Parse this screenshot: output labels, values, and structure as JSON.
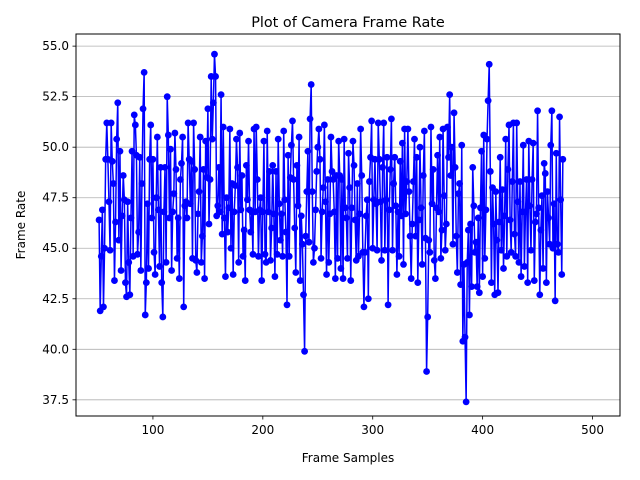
{
  "chart_data": {
    "type": "line",
    "title": "Plot of Camera Frame Rate",
    "xlabel": "Frame Samples",
    "ylabel": "Frame Rate",
    "xlim": [
      30,
      525
    ],
    "ylim": [
      36.7,
      55.6
    ],
    "xticks": [
      100,
      200,
      300,
      400,
      500
    ],
    "yticks": [
      37.5,
      40.0,
      42.5,
      45.0,
      47.5,
      50.0,
      52.5,
      55.0
    ],
    "ytick_labels": [
      "37.5",
      "40.0",
      "42.5",
      "45.0",
      "47.5",
      "50.0",
      "52.5",
      "55.0"
    ],
    "grid": "horizontal",
    "color": "#0000ff",
    "marker": "circle",
    "x_start": 51,
    "x_step": 1,
    "values": [
      46.4,
      41.9,
      44.6,
      46.9,
      42.1,
      45.0,
      49.4,
      51.2,
      49.4,
      47.3,
      44.9,
      51.2,
      49.3,
      48.2,
      43.4,
      46.3,
      50.4,
      52.2,
      45.4,
      49.8,
      43.9,
      46.6,
      48.6,
      47.4,
      43.3,
      42.6,
      47.3,
      44.3,
      42.7,
      46.5,
      49.8,
      44.6,
      51.6,
      51.1,
      49.6,
      44.7,
      45.8,
      49.5,
      43.9,
      48.2,
      51.9,
      53.7,
      41.7,
      43.3,
      47.2,
      44.0,
      49.4,
      51.1,
      46.5,
      49.4,
      44.8,
      43.7,
      47.5,
      50.5,
      46.9,
      44.1,
      49.0,
      43.3,
      41.6,
      46.8,
      49.0,
      44.3,
      52.5,
      50.6,
      46.5,
      49.9,
      43.9,
      46.8,
      47.7,
      50.7,
      48.9,
      44.5,
      46.5,
      43.5,
      48.4,
      49.2,
      50.5,
      42.1,
      47.1,
      47.3,
      46.5,
      51.2,
      49.4,
      47.2,
      49.3,
      44.5,
      51.2,
      48.9,
      44.4,
      43.8,
      46.7,
      47.8,
      50.5,
      44.3,
      45.6,
      48.9,
      43.5,
      50.3,
      48.5,
      51.9,
      46.2,
      48.4,
      53.5,
      50.4,
      52.2,
      54.6,
      53.5,
      46.6,
      47.1,
      49.0,
      46.8,
      52.6,
      45.7,
      51.0,
      46.5,
      43.6,
      47.5,
      45.8,
      47.0,
      50.9,
      45.0,
      48.2,
      43.7,
      46.8,
      48.1,
      50.4,
      49.0,
      44.3,
      50.7,
      46.9,
      48.6,
      44.6,
      45.9,
      43.4,
      49.1,
      47.4,
      50.3,
      46.9,
      45.8,
      46.8,
      44.7,
      50.9,
      46.8,
      51.0,
      48.4,
      44.6,
      46.9,
      47.5,
      43.4,
      46.8,
      50.3,
      44.7,
      44.3,
      50.8,
      46.8,
      48.8,
      44.4,
      46.0,
      49.1,
      46.7,
      43.6,
      48.8,
      44.7,
      50.4,
      47.2,
      45.4,
      46.7,
      44.6,
      50.8,
      47.4,
      45.8,
      42.2,
      49.6,
      44.6,
      48.5,
      50.1,
      51.3,
      48.4,
      46.0,
      43.8,
      49.1,
      47.1,
      50.5,
      43.4,
      46.6,
      45.2,
      42.7,
      39.9,
      45.6,
      47.8,
      49.8,
      45.3,
      51.4,
      53.1,
      47.8,
      44.3,
      45.0,
      46.9,
      48.8,
      50.0,
      50.9,
      49.4,
      44.5,
      46.8,
      48.0,
      51.1,
      47.3,
      43.7,
      48.4,
      44.3,
      46.7,
      50.5,
      48.8,
      48.4,
      46.8,
      43.5,
      48.6,
      44.5,
      50.3,
      48.6,
      44.0,
      48.4,
      43.5,
      50.4,
      47.0,
      46.5,
      44.5,
      49.7,
      48.0,
      43.4,
      47.0,
      50.3,
      49.1,
      46.4,
      44.4,
      48.2,
      44.6,
      46.7,
      50.9,
      48.6,
      44.8,
      42.1,
      44.8,
      46.6,
      47.4,
      42.5,
      48.3,
      49.5,
      51.3,
      45.0,
      47.4,
      49.4,
      47.2,
      44.9,
      51.2,
      49.4,
      47.3,
      44.4,
      49.0,
      51.2,
      44.9,
      47.4,
      49.5,
      42.2,
      46.9,
      48.9,
      51.4,
      44.9,
      48.2,
      49.5,
      47.1,
      43.7,
      46.8,
      44.6,
      49.3,
      46.6,
      50.2,
      44.2,
      50.9,
      46.7,
      48.3,
      50.9,
      47.8,
      45.6,
      43.5,
      46.2,
      48.3,
      50.4,
      45.6,
      49.5,
      43.3,
      46.4,
      50.0,
      47.0,
      44.2,
      48.6,
      50.8,
      45.5,
      38.9,
      41.6,
      45.4,
      44.8,
      51.0,
      47.2,
      48.9,
      44.4,
      43.5,
      47.0,
      49.6,
      46.8,
      50.5,
      44.5,
      45.9,
      50.9,
      47.6,
      44.9,
      46.2,
      51.0,
      49.5,
      52.6,
      48.6,
      50.0,
      45.2,
      51.7,
      49.0,
      45.6,
      43.8,
      47.7,
      48.2,
      43.2,
      50.1,
      40.4,
      44.2,
      40.6,
      37.4,
      44.3,
      45.9,
      41.7,
      46.2,
      43.1,
      49.0,
      47.1,
      44.8,
      45.3,
      43.1,
      46.5,
      42.8,
      47.0,
      49.8,
      43.6,
      50.6,
      44.5,
      46.9,
      50.4,
      52.3,
      54.1,
      48.8,
      43.3,
      48.0,
      46.2,
      42.7,
      47.8,
      45.4,
      42.8,
      46.3,
      49.5,
      44.9,
      47.9,
      44.0,
      46.6,
      50.4,
      44.6,
      48.9,
      51.1,
      46.4,
      44.8,
      48.3,
      51.2,
      45.7,
      44.6,
      51.2,
      47.3,
      44.3,
      48.3,
      43.6,
      46.8,
      50.1,
      44.1,
      46.8,
      48.4,
      43.3,
      50.3,
      47.1,
      44.9,
      48.4,
      50.2,
      43.4,
      46.3,
      46.7,
      51.8,
      47.0,
      42.7,
      45.9,
      47.6,
      44.0,
      49.2,
      48.7,
      43.3,
      47.8,
      46.5,
      45.2,
      50.1,
      51.8,
      45.0,
      47.2,
      42.4,
      49.7,
      45.2,
      44.8,
      51.5,
      47.4,
      43.7,
      49.4
    ]
  }
}
